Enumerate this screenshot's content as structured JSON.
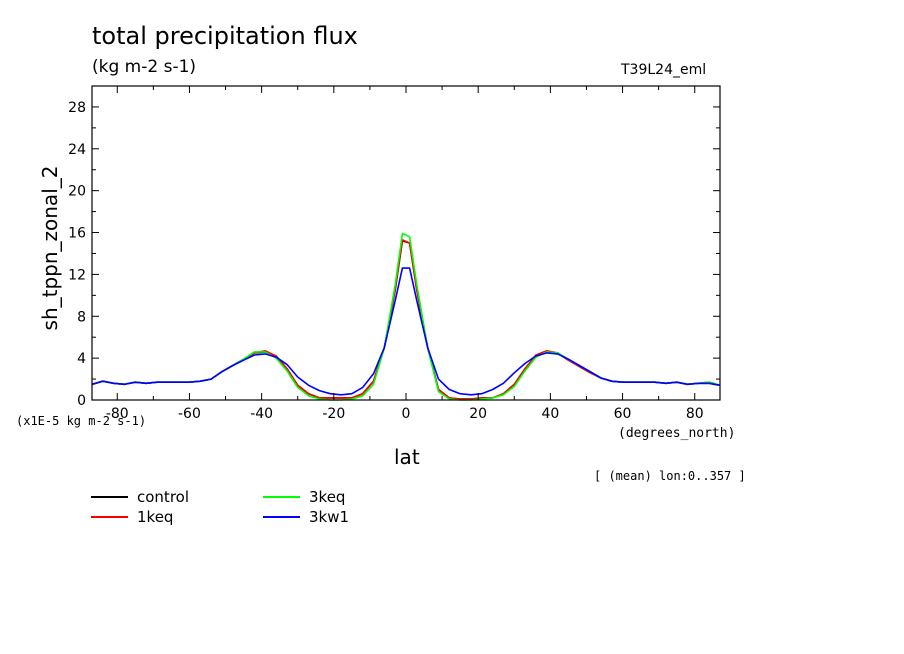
{
  "chart_data": {
    "type": "line",
    "title": "total precipitation flux",
    "subtitle": "(kg m-2 s-1)",
    "run_id": "T39L24_eml",
    "xlabel": "lat",
    "ylabel": "sh_tppn_zonal_2",
    "x_units": "(degrees_north)",
    "y_units": "(x1E-5 kg m-2 s-1)",
    "note": "[ (mean) lon:0..357 ]",
    "xlim": [
      -87,
      87
    ],
    "ylim": [
      0,
      30
    ],
    "xticks": [
      -80,
      -60,
      -40,
      -20,
      0,
      20,
      40,
      60,
      80
    ],
    "xtick_labels": [
      "-80",
      "-60",
      "-40",
      "-20",
      "0",
      "20",
      "40",
      "60",
      "80"
    ],
    "yticks": [
      0,
      4,
      8,
      12,
      16,
      20,
      24,
      28
    ],
    "ytick_labels": [
      "0",
      "4",
      "8",
      "12",
      "16",
      "20",
      "24",
      "28"
    ],
    "grid": false,
    "legend_position": "bottom-left",
    "x": [
      -87,
      -84,
      -81,
      -78,
      -75,
      -72,
      -69,
      -66,
      -63,
      -60,
      -57,
      -54,
      -51,
      -48,
      -45,
      -42,
      -39,
      -36,
      -33,
      -30,
      -27,
      -24,
      -21,
      -18,
      -15,
      -12,
      -9,
      -6,
      -3,
      -1,
      1,
      3,
      6,
      9,
      12,
      15,
      18,
      21,
      24,
      27,
      30,
      33,
      36,
      39,
      42,
      45,
      48,
      51,
      54,
      57,
      60,
      63,
      66,
      69,
      72,
      75,
      78,
      81,
      84,
      87
    ],
    "series": [
      {
        "name": "control",
        "color": "#000000",
        "values": [
          1.5,
          1.8,
          1.6,
          1.5,
          1.7,
          1.6,
          1.7,
          1.7,
          1.7,
          1.7,
          1.8,
          2.0,
          2.7,
          3.3,
          3.9,
          4.5,
          4.6,
          4.2,
          3.0,
          1.4,
          0.6,
          0.2,
          0.2,
          0.2,
          0.2,
          0.6,
          1.8,
          5.0,
          10.5,
          15.2,
          15.0,
          10.5,
          5.0,
          1.0,
          0.2,
          0.1,
          0.1,
          0.2,
          0.2,
          0.6,
          1.5,
          3.0,
          4.2,
          4.6,
          4.5,
          3.8,
          3.3,
          2.7,
          2.1,
          1.8,
          1.7,
          1.7,
          1.7,
          1.7,
          1.6,
          1.7,
          1.5,
          1.6,
          1.6,
          1.4
        ]
      },
      {
        "name": "1keq",
        "color": "#ff0000",
        "values": [
          1.5,
          1.8,
          1.6,
          1.5,
          1.7,
          1.6,
          1.7,
          1.7,
          1.7,
          1.7,
          1.8,
          2.0,
          2.7,
          3.3,
          3.9,
          4.5,
          4.7,
          4.2,
          3.0,
          1.4,
          0.6,
          0.2,
          0.2,
          0.2,
          0.2,
          0.6,
          1.8,
          5.0,
          10.6,
          15.3,
          15.0,
          10.5,
          5.0,
          1.0,
          0.2,
          0.1,
          0.1,
          0.2,
          0.2,
          0.6,
          1.5,
          3.0,
          4.3,
          4.7,
          4.5,
          3.8,
          3.2,
          2.6,
          2.1,
          1.8,
          1.7,
          1.7,
          1.7,
          1.7,
          1.6,
          1.7,
          1.5,
          1.6,
          1.7,
          1.4
        ]
      },
      {
        "name": "3keq",
        "color": "#00ff00",
        "values": [
          1.5,
          1.8,
          1.6,
          1.5,
          1.7,
          1.6,
          1.7,
          1.7,
          1.7,
          1.7,
          1.8,
          2.0,
          2.7,
          3.3,
          3.9,
          4.6,
          4.6,
          4.0,
          2.8,
          1.2,
          0.4,
          0.1,
          0.0,
          0.0,
          0.1,
          0.4,
          1.5,
          5.0,
          11.0,
          15.9,
          15.6,
          11.0,
          5.0,
          0.8,
          0.1,
          0.0,
          0.0,
          0.1,
          0.2,
          0.5,
          1.3,
          2.8,
          4.1,
          4.6,
          4.5,
          3.9,
          3.3,
          2.7,
          2.1,
          1.8,
          1.7,
          1.7,
          1.7,
          1.7,
          1.6,
          1.7,
          1.5,
          1.6,
          1.7,
          1.4
        ]
      },
      {
        "name": "3kw1",
        "color": "#0000ff",
        "values": [
          1.5,
          1.8,
          1.6,
          1.5,
          1.7,
          1.6,
          1.7,
          1.7,
          1.7,
          1.7,
          1.8,
          2.0,
          2.7,
          3.3,
          3.8,
          4.3,
          4.4,
          4.1,
          3.4,
          2.2,
          1.4,
          0.9,
          0.6,
          0.5,
          0.6,
          1.2,
          2.5,
          5.0,
          9.5,
          12.6,
          12.6,
          9.5,
          5.0,
          2.0,
          1.0,
          0.6,
          0.5,
          0.6,
          1.0,
          1.6,
          2.6,
          3.5,
          4.2,
          4.5,
          4.4,
          3.9,
          3.3,
          2.7,
          2.1,
          1.8,
          1.7,
          1.7,
          1.7,
          1.7,
          1.6,
          1.7,
          1.5,
          1.6,
          1.6,
          1.4
        ]
      }
    ]
  }
}
